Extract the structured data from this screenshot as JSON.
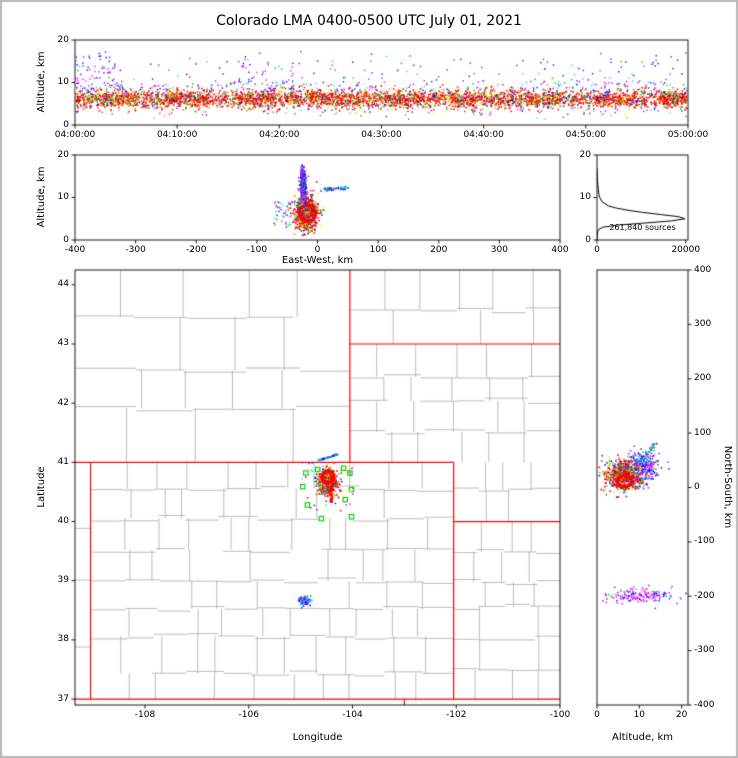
{
  "title": "Colorado LMA 0400-0500 UTC July 01, 2021",
  "colors": {
    "background": "#ffffff",
    "figure_border": "#b9b9b9",
    "frame": "#000000",
    "county_line": "#ababab",
    "state_line": "#ff0000",
    "station": "#00cc00",
    "histogram_line": "#000000",
    "named": {
      "red": "#ff0000",
      "darkred": "#c40000",
      "orange": "#ff8c00",
      "yellow": "#ffe600",
      "green": "#00c400",
      "cyan": "#00e0ff",
      "blue": "#1414ff",
      "purple": "#8a14ff",
      "magenta": "#ff00ff",
      "black": "#1e1e1e",
      "gray": "#8e8e8e"
    }
  },
  "palettes": {
    "band_core": [
      [
        "red",
        0.46
      ],
      [
        "darkred",
        0.15
      ],
      [
        "orange",
        0.15
      ],
      [
        "yellow",
        0.06
      ],
      [
        "green",
        0.05
      ],
      [
        "gray",
        0.08
      ],
      [
        "black",
        0.05
      ]
    ],
    "rainbow": [
      [
        "red",
        0.13
      ],
      [
        "orange",
        0.13
      ],
      [
        "yellow",
        0.13
      ],
      [
        "green",
        0.14
      ],
      [
        "cyan",
        0.14
      ],
      [
        "blue",
        0.13
      ],
      [
        "purple",
        0.1
      ],
      [
        "magenta",
        0.1
      ]
    ],
    "mix_warm": [
      [
        "red",
        0.38
      ],
      [
        "darkred",
        0.08
      ],
      [
        "orange",
        0.13
      ],
      [
        "yellow",
        0.09
      ],
      [
        "green",
        0.1
      ],
      [
        "cyan",
        0.08
      ],
      [
        "blue",
        0.08
      ],
      [
        "magenta",
        0.06
      ]
    ],
    "cool": [
      [
        "blue",
        0.28
      ],
      [
        "purple",
        0.3
      ],
      [
        "magenta",
        0.22
      ],
      [
        "cyan",
        0.12
      ],
      [
        "green",
        0.08
      ]
    ],
    "cool2": [
      [
        "blue",
        0.22
      ],
      [
        "cyan",
        0.24
      ],
      [
        "green",
        0.16
      ],
      [
        "purple",
        0.18
      ],
      [
        "magenta",
        0.2
      ]
    ],
    "violet": [
      [
        "magenta",
        0.4
      ],
      [
        "purple",
        0.3
      ],
      [
        "blue",
        0.18
      ],
      [
        "cyan",
        0.07
      ],
      [
        "green",
        0.05
      ]
    ],
    "streak": [
      [
        "cyan",
        0.35
      ],
      [
        "blue",
        0.3
      ],
      [
        "green",
        0.2
      ],
      [
        "purple",
        0.15
      ]
    ],
    "warm": [
      [
        "red",
        0.72
      ],
      [
        "darkred",
        0.14
      ],
      [
        "orange",
        0.14
      ]
    ]
  },
  "chart_data": [
    {
      "id": "time_height",
      "type": "scatter",
      "xlabel": "",
      "ylabel": "Altitude, km",
      "xlim": [
        0,
        60
      ],
      "xticks": [
        0,
        10,
        20,
        30,
        40,
        50,
        60
      ],
      "xtick_labels": [
        "04:00:00",
        "04:10:00",
        "04:20:00",
        "04:30:00",
        "04:40:00",
        "04:50:00",
        "05:00:00"
      ],
      "ylim": [
        0,
        20
      ],
      "yticks": [
        0,
        10,
        20
      ],
      "ytick_labels": [
        "0",
        "10",
        "20"
      ],
      "description": "Dense band of VHF lightning sources 4-9 km altitude across full hour, sparse sources up to 17 km",
      "clusters": [
        {
          "name": "band-core",
          "type": "hband",
          "x": [
            0,
            60
          ],
          "mean": 6.1,
          "sd": 1.05,
          "ybounds": [
            3.0,
            9.6
          ],
          "n": 2800,
          "palette": "band_core",
          "size": 1.5
        },
        {
          "name": "band-core-clumps",
          "type": "hband",
          "x": [
            0,
            60
          ],
          "mean": 6.0,
          "sd": 0.85,
          "ybounds": [
            3.2,
            9.0
          ],
          "n": 900,
          "palette": "band_core",
          "xclumps": [
            [
              2,
              6
            ],
            [
              9,
              13
            ],
            [
              16,
              20
            ],
            [
              23,
              27
            ],
            [
              30,
              34
            ],
            [
              37,
              41
            ],
            [
              44,
              48
            ],
            [
              51,
              55
            ],
            [
              57,
              60
            ]
          ],
          "clump_frac": 0.9,
          "size": 1.5
        },
        {
          "name": "band-speckle",
          "type": "hband",
          "x": [
            0,
            60
          ],
          "mean": 6.3,
          "sd": 1.5,
          "ybounds": [
            2.2,
            10.5
          ],
          "n": 1000,
          "palette": "rainbow",
          "size": 1.4
        },
        {
          "name": "mid-fringe",
          "type": "hband",
          "x": [
            0,
            60
          ],
          "mean": 8.8,
          "sd": 1.6,
          "ybounds": [
            7.6,
            14.0
          ],
          "n": 240,
          "palette": "cool",
          "xclumps": [
            [
              0,
              5
            ],
            [
              15,
              23
            ],
            [
              44,
              58
            ]
          ],
          "clump_frac": 0.5,
          "size": 1.4
        },
        {
          "name": "high-sources",
          "type": "hband",
          "x": [
            0,
            60
          ],
          "mean": 13.5,
          "sd": 2.0,
          "ybounds": [
            9.0,
            17.5
          ],
          "n": 160,
          "palette": "cool",
          "xclumps": [
            [
              0,
              4
            ],
            [
              16,
              22
            ],
            [
              45,
              57
            ]
          ],
          "clump_frac": 0.55,
          "size": 1.4
        },
        {
          "name": "low-sparse",
          "type": "hband",
          "x": [
            0,
            60
          ],
          "mean": 3.1,
          "sd": 0.8,
          "ybounds": [
            1.2,
            4.0
          ],
          "n": 70,
          "palette": "rainbow",
          "size": 1.3
        }
      ]
    },
    {
      "id": "ew_height",
      "type": "scatter",
      "xlabel": "East-West, km",
      "ylabel": "Altitude, km",
      "xlim": [
        -400,
        400
      ],
      "xticks": [
        -400,
        -300,
        -200,
        -100,
        0,
        100,
        200,
        300,
        400
      ],
      "xtick_labels": [
        "-400",
        "-300",
        "-200",
        "-100",
        "0",
        "100",
        "200",
        "300",
        "400"
      ],
      "ylim": [
        0,
        20
      ],
      "yticks": [
        0,
        10,
        20
      ],
      "ytick_labels": [
        "0",
        "10",
        "20"
      ],
      "clusters": [
        {
          "name": "storm-core",
          "type": "gauss",
          "cx": -18,
          "cy": 6.2,
          "sx": 9,
          "sy": 2.0,
          "ybounds": [
            0.8,
            18
          ],
          "n": 850,
          "palette": "mix_warm",
          "size": 1.6
        },
        {
          "name": "red-ring",
          "type": "ring",
          "cx": -16.5,
          "cy": 6.3,
          "rx": 13,
          "ry": 1.9,
          "n": 230,
          "color": "red",
          "size": 1.8
        },
        {
          "name": "anvil-column",
          "type": "gauss",
          "cx": -24,
          "cy": 13.0,
          "sx": 2.6,
          "sy": 2.2,
          "ybounds": [
            8,
            17.8
          ],
          "n": 300,
          "palette": "cool",
          "size": 1.5
        },
        {
          "name": "east-streak",
          "type": "line",
          "p1": [
            8,
            11.8
          ],
          "p2": [
            48,
            12.3
          ],
          "jx": 6,
          "jy": 0.8,
          "n": 55,
          "palette": "streak",
          "size": 1.5
        },
        {
          "name": "west-cell",
          "type": "box",
          "x": [
            -72,
            -40
          ],
          "y": [
            3,
            9
          ],
          "n": 45,
          "palette": "cool2",
          "size": 1.4
        }
      ]
    },
    {
      "id": "alt_histogram",
      "type": "line",
      "xlabel": "",
      "ylabel": "",
      "xlim": [
        0,
        20500
      ],
      "xticks": [
        0,
        20000
      ],
      "xtick_labels": [
        "0",
        "20000"
      ],
      "ylim": [
        0,
        20
      ],
      "yticks": [
        0,
        10,
        20
      ],
      "ytick_labels": [
        "0",
        "10",
        "20"
      ],
      "annotation": "261,840 sources",
      "profile_alt_km": [
        0,
        1,
        2,
        2.5,
        3,
        3.5,
        4,
        4.5,
        5,
        5.5,
        6,
        6.5,
        7,
        7.5,
        8,
        9,
        10,
        11,
        12,
        13,
        14,
        15,
        16,
        17
      ],
      "profile_counts": [
        0,
        40,
        160,
        420,
        1300,
        4600,
        10800,
        16800,
        19800,
        18300,
        14300,
        10300,
        7000,
        4400,
        2600,
        1150,
        620,
        390,
        270,
        190,
        120,
        60,
        25,
        0
      ]
    },
    {
      "id": "plan_view",
      "type": "scatter",
      "xlabel": "Longitude",
      "ylabel": "Latitude",
      "xlim": [
        -109.35,
        -100.0
      ],
      "xticks": [
        -108,
        -106,
        -104,
        -102,
        -100
      ],
      "xtick_labels": [
        "-108",
        "-106",
        "-104",
        "-102",
        "-100"
      ],
      "ylim": [
        36.9,
        44.25
      ],
      "yticks": [
        37,
        38,
        39,
        40,
        41,
        42,
        43,
        44
      ],
      "ytick_labels": [
        "37",
        "38",
        "39",
        "40",
        "41",
        "42",
        "43",
        "44"
      ],
      "state_borders": [
        [
          -109.35,
          41,
          -102.05,
          41
        ],
        [
          -109.05,
          37,
          -109.05,
          41
        ],
        [
          -102.05,
          37,
          -102.05,
          41
        ],
        [
          -109.35,
          37,
          -100.0,
          37
        ],
        [
          -104.05,
          41,
          -104.05,
          44.25
        ],
        [
          -104.05,
          43,
          -100.0,
          43
        ],
        [
          -102.05,
          40,
          -100.0,
          40
        ],
        [
          -103.0,
          36.9,
          -103.0,
          37.0
        ]
      ],
      "county_regions": [
        {
          "name": "wyoming",
          "lon": [
            -109.35,
            -104.05
          ],
          "lat": [
            41.0,
            44.25
          ],
          "rows": 4,
          "cols": 5,
          "seed": 11
        },
        {
          "name": "south-dakota",
          "lon": [
            -104.05,
            -100.0
          ],
          "lat": [
            43.0,
            44.25
          ],
          "rows": 2,
          "cols": 6,
          "seed": 12
        },
        {
          "name": "nebraska",
          "lon": [
            -104.05,
            -100.0
          ],
          "lat": [
            41.0,
            43.0
          ],
          "rows": 4,
          "cols": 6,
          "seed": 13
        },
        {
          "name": "nebraska-south",
          "lon": [
            -102.05,
            -100.0
          ],
          "lat": [
            40.0,
            41.0
          ],
          "rows": 2,
          "cols": 4,
          "seed": 14
        },
        {
          "name": "colorado",
          "lon": [
            -109.05,
            -102.05
          ],
          "lat": [
            37.0,
            41.0
          ],
          "rows": 8,
          "cols": 11,
          "seed": 15
        },
        {
          "name": "kansas",
          "lon": [
            -102.05,
            -100.0
          ],
          "lat": [
            37.0,
            40.0
          ],
          "rows": 6,
          "cols": 4,
          "seed": 16
        },
        {
          "name": "utah",
          "lon": [
            -109.35,
            -109.05
          ],
          "lat": [
            37.0,
            41.0
          ],
          "rows": 4,
          "cols": 1,
          "seed": 17
        }
      ],
      "stations_lon_lat": [
        [
          -104.9,
          40.82
        ],
        [
          -104.67,
          40.88
        ],
        [
          -104.42,
          40.82
        ],
        [
          -104.17,
          40.9
        ],
        [
          -104.05,
          40.82
        ],
        [
          -104.96,
          40.59
        ],
        [
          -104.02,
          40.54
        ],
        [
          -104.87,
          40.28
        ],
        [
          -104.14,
          40.37
        ],
        [
          -104.6,
          40.05
        ],
        [
          -104.02,
          40.08
        ]
      ],
      "clusters": [
        {
          "name": "area-scatter",
          "type": "box",
          "x": [
            -104.98,
            -103.98
          ],
          "y": [
            40.18,
            41.0
          ],
          "n": 60,
          "palette": "rainbow",
          "size": 1.5
        },
        {
          "name": "storm-core",
          "type": "gauss",
          "cx": -104.48,
          "cy": 40.66,
          "sx": 0.085,
          "sy": 0.095,
          "n": 800,
          "palette": "mix_warm",
          "size": 1.6
        },
        {
          "name": "red-ring",
          "type": "ring",
          "cx": -104.47,
          "cy": 40.75,
          "rx": 0.115,
          "ry": 0.095,
          "n": 210,
          "color": "red",
          "size": 1.8
        },
        {
          "name": "core-streak",
          "type": "box",
          "x": [
            -104.425,
            -104.385
          ],
          "y": [
            40.33,
            40.86
          ],
          "n": 170,
          "palette": "warm",
          "size": 1.7
        },
        {
          "name": "ne-streak",
          "type": "line",
          "p1": [
            -104.66,
            41.03
          ],
          "p2": [
            -104.3,
            41.13
          ],
          "jx": 0.03,
          "jy": 0.025,
          "n": 55,
          "palette": "streak",
          "size": 1.5
        },
        {
          "name": "secondary-cell",
          "type": "gauss",
          "cx": -104.92,
          "cy": 38.67,
          "sx": 0.055,
          "sy": 0.042,
          "n": 110,
          "palette": "cool2",
          "size": 1.6
        }
      ]
    },
    {
      "id": "ns_height",
      "type": "scatter",
      "xlabel": "Altitude, km",
      "ylabel": "North-South, km",
      "yaxis_side": "right",
      "xlim": [
        0,
        21.5
      ],
      "xticks": [
        0,
        10,
        20
      ],
      "xtick_labels": [
        "0",
        "10",
        "20"
      ],
      "ylim": [
        -400,
        400
      ],
      "yticks": [
        -400,
        -300,
        -200,
        -100,
        0,
        100,
        200,
        300,
        400
      ],
      "ytick_labels": [
        "-400",
        "-300",
        "-200",
        "-100",
        "0",
        "100",
        "200",
        "300",
        "400"
      ],
      "clusters": [
        {
          "name": "storm-core",
          "type": "gauss",
          "cx": 6.4,
          "cy": 22,
          "sx": 2.3,
          "sy": 14,
          "xbounds": [
            0.5,
            21
          ],
          "n": 850,
          "palette": "mix_warm",
          "size": 1.6
        },
        {
          "name": "red-ring",
          "type": "ring",
          "cx": 6.5,
          "cy": 12,
          "rx": 1.7,
          "ry": 11,
          "n": 200,
          "color": "red",
          "size": 1.8
        },
        {
          "name": "upper-arm",
          "type": "gauss",
          "cx": 11.3,
          "cy": 38,
          "sx": 2.0,
          "sy": 16,
          "xbounds": [
            1,
            21
          ],
          "n": 230,
          "palette": "cool",
          "size": 1.5
        },
        {
          "name": "north-streak",
          "type": "line",
          "p1": [
            10.2,
            46
          ],
          "p2": [
            13.8,
            82
          ],
          "jx": 1.0,
          "jy": 5,
          "n": 45,
          "palette": "streak",
          "size": 1.5
        },
        {
          "name": "south-cell",
          "type": "gauss",
          "cx": 10.0,
          "cy": -199,
          "sx": 4.2,
          "sy": 7,
          "xbounds": [
            0.5,
            21
          ],
          "n": 150,
          "palette": "violet",
          "size": 1.5
        }
      ]
    }
  ]
}
